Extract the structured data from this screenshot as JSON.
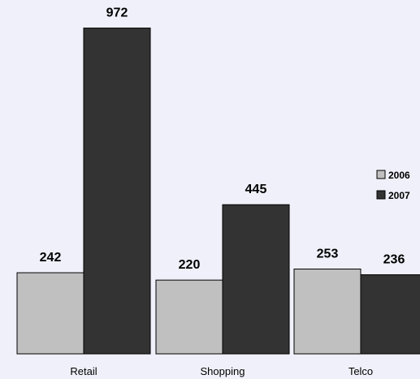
{
  "chart_data": {
    "type": "bar",
    "title": "",
    "xlabel": "",
    "ylabel": "",
    "categories": [
      "Retail",
      "Shopping",
      "Telco"
    ],
    "series": [
      {
        "name": "2006",
        "values": [
          242,
          220,
          253
        ],
        "color": "#c0c0c0"
      },
      {
        "name": "2007",
        "values": [
          972,
          445,
          236
        ],
        "color": "#333333"
      }
    ],
    "ylim": [
      0,
      1000
    ],
    "grid": false,
    "legend_position": "right"
  }
}
